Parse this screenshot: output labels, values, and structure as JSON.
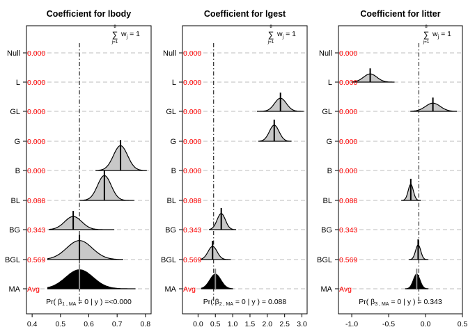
{
  "row_labels": [
    "Null",
    "L",
    "GL",
    "G",
    "B",
    "BL",
    "BG",
    "BGL",
    "MA"
  ],
  "row_weights": [
    "0.000",
    "0.000",
    "0.000",
    "0.000",
    "0.000",
    "0.088",
    "0.343",
    "0.569",
    "Avg"
  ],
  "sum_annotation": {
    "sigma": "∑",
    "top": "8",
    "bottom": "j=1",
    "text": "w",
    "sub": "j",
    "rhs": " = 1"
  },
  "colors": {
    "weight_text": "#ff0000",
    "fill": "#c8c8c8",
    "avg_fill": "#000000",
    "ref_line": "#000000",
    "grid": "#bebebe"
  },
  "chart_data": [
    {
      "type": "density-ridge",
      "title": "Coefficient for lbody",
      "xlim": [
        0.38,
        0.82
      ],
      "ticks": [
        0.4,
        0.5,
        0.6,
        0.7,
        0.8
      ],
      "tick_labels": [
        "0.4",
        "0.5",
        "0.6",
        "0.7",
        "0.8"
      ],
      "ref_x": 0.567,
      "footer": {
        "pre": "Pr( ",
        "beta": "β",
        "sub": "1 , MA",
        "post": " = 0 | y ) =<0.000"
      },
      "models": [
        {
          "row": "B",
          "mean": 0.712,
          "sd": 0.025,
          "range": [
            0.625,
            0.805
          ],
          "height": 0.85
        },
        {
          "row": "BL",
          "mean": 0.655,
          "sd": 0.024,
          "range": [
            0.57,
            0.76
          ],
          "height": 0.85
        },
        {
          "row": "BG",
          "mean": 0.545,
          "sd": 0.03,
          "range": [
            0.46,
            0.69
          ],
          "height": 0.45
        },
        {
          "row": "BGL",
          "mean": 0.567,
          "sd": 0.045,
          "range": [
            0.455,
            0.72
          ],
          "height": 0.65
        }
      ],
      "avg": {
        "mean": 0.567,
        "sd": 0.048,
        "range": [
          0.455,
          0.765
        ],
        "height": 0.65
      }
    },
    {
      "type": "density-ridge",
      "title": "Coefficient for lgest",
      "xlim": [
        -0.45,
        3.15
      ],
      "ticks": [
        0.0,
        0.5,
        1.0,
        1.5,
        2.0,
        2.5,
        3.0
      ],
      "tick_labels": [
        "0.0",
        "0.5",
        "1.0",
        "1.5",
        "2.0",
        "2.5",
        "3.0"
      ],
      "ref_x": 0.45,
      "footer": {
        "pre": "Pr( ",
        "beta": "β",
        "sub": "2 , MA",
        "post": " = 0 | y ) = 0.088"
      },
      "models": [
        {
          "row": "GL",
          "mean": 2.38,
          "sd": 0.17,
          "range": [
            1.7,
            3.05
          ],
          "height": 0.45
        },
        {
          "row": "G",
          "mean": 2.2,
          "sd": 0.14,
          "range": [
            1.75,
            2.7
          ],
          "height": 0.55
        },
        {
          "row": "BG",
          "mean": 0.67,
          "sd": 0.12,
          "range": [
            0.33,
            1.1
          ],
          "height": 0.55
        },
        {
          "row": "BGL",
          "mean": 0.42,
          "sd": 0.13,
          "range": [
            0.1,
            0.95
          ],
          "height": 0.45
        }
      ],
      "avg": {
        "mean": 0.5,
        "sd": 0.16,
        "range": [
          0.1,
          1.0
        ],
        "height": 0.5
      }
    },
    {
      "type": "density-ridge",
      "title": "Coefficient for litter",
      "xlim": [
        -1.18,
        0.5
      ],
      "ticks": [
        -1.0,
        -0.5,
        0.0,
        0.5
      ],
      "tick_labels": [
        "-1.0",
        "-0.5",
        "0.0",
        "0.5"
      ],
      "ref_x": -0.09,
      "footer": {
        "pre": "Pr( ",
        "beta": "β",
        "sub": "3 , MA",
        "post": " = 0 | y ) = 0.343"
      },
      "models": [
        {
          "row": "L",
          "mean": -0.75,
          "sd": 0.09,
          "range": [
            -1.0,
            -0.42
          ],
          "height": 0.28
        },
        {
          "row": "GL",
          "mean": 0.1,
          "sd": 0.1,
          "range": [
            -0.2,
            0.42
          ],
          "height": 0.28
        },
        {
          "row": "BL",
          "mean": -0.2,
          "sd": 0.035,
          "range": [
            -0.33,
            -0.06
          ],
          "height": 0.55
        },
        {
          "row": "BGL",
          "mean": -0.1,
          "sd": 0.035,
          "range": [
            -0.22,
            0.04
          ],
          "height": 0.5
        }
      ],
      "avg": {
        "mean": -0.12,
        "sd": 0.045,
        "range": [
          -0.27,
          0.04
        ],
        "height": 0.5
      }
    }
  ]
}
